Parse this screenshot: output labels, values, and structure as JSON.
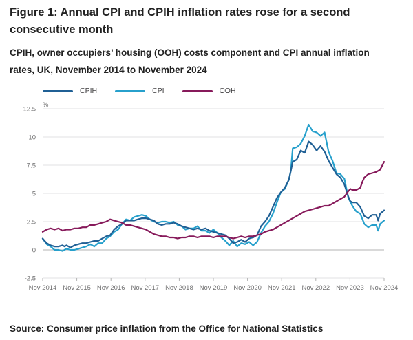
{
  "title": "Figure 1: Annual CPI and CPIH inflation rates rose for a second consecutive month",
  "subtitle": "CPIH, owner occupiers’ housing (OOH) costs component and CPI annual inflation rates, UK, November 2014 to November 2024",
  "source": "Source: Consumer price inflation from the Office for National Statistics",
  "chart_data": {
    "type": "line",
    "ylabel": "%",
    "xlabel": "",
    "ylim": [
      -2.5,
      12.5
    ],
    "yticks": [
      -2.5,
      0,
      2.5,
      5,
      7.5,
      10,
      12.5
    ],
    "ytick_labels": [
      "-2.5",
      "0",
      "2.5",
      "5",
      "7.5",
      "10",
      "12.5"
    ],
    "xticks": [
      "Nov 2014",
      "Nov 2015",
      "Nov 2016",
      "Nov 2017",
      "Nov 2018",
      "Nov 2019",
      "Nov 2020",
      "Nov 2021",
      "Nov 2022",
      "Nov 2023",
      "Nov 2024"
    ],
    "xmonths": 120,
    "legend_position": "top-left",
    "grid": true,
    "series": [
      {
        "name": "CPIH",
        "color": "#206095",
        "points": [
          [
            0,
            1.0
          ],
          [
            2,
            0.6
          ],
          [
            4,
            0.4
          ],
          [
            6,
            0.3
          ],
          [
            8,
            0.3
          ],
          [
            10,
            0.4
          ],
          [
            11,
            0.3
          ],
          [
            12,
            0.4
          ],
          [
            14,
            0.2
          ],
          [
            16,
            0.4
          ],
          [
            18,
            0.5
          ],
          [
            20,
            0.6
          ],
          [
            22,
            0.6
          ],
          [
            24,
            0.7
          ],
          [
            26,
            0.8
          ],
          [
            28,
            0.8
          ],
          [
            30,
            1.0
          ],
          [
            32,
            1.2
          ],
          [
            34,
            1.3
          ],
          [
            36,
            1.8
          ],
          [
            38,
            2.1
          ],
          [
            40,
            2.3
          ],
          [
            42,
            2.6
          ],
          [
            44,
            2.6
          ],
          [
            46,
            2.6
          ],
          [
            48,
            2.7
          ],
          [
            50,
            2.8
          ],
          [
            52,
            2.8
          ],
          [
            54,
            2.7
          ],
          [
            56,
            2.6
          ],
          [
            58,
            2.3
          ],
          [
            60,
            2.2
          ],
          [
            62,
            2.3
          ],
          [
            64,
            2.3
          ],
          [
            66,
            2.4
          ],
          [
            68,
            2.3
          ],
          [
            70,
            2.1
          ],
          [
            72,
            2.0
          ],
          [
            74,
            1.9
          ],
          [
            76,
            1.8
          ],
          [
            78,
            1.9
          ],
          [
            80,
            1.8
          ],
          [
            82,
            1.9
          ],
          [
            84,
            1.7
          ],
          [
            86,
            1.6
          ],
          [
            88,
            1.5
          ],
          [
            90,
            1.4
          ],
          [
            92,
            1.3
          ],
          [
            94,
            1.0
          ],
          [
            96,
            0.6
          ],
          [
            98,
            0.7
          ],
          [
            100,
            0.9
          ],
          [
            102,
            0.7
          ],
          [
            104,
            1.0
          ],
          [
            106,
            1.1
          ],
          [
            108,
            1.3
          ],
          [
            110,
            2.1
          ],
          [
            112,
            2.5
          ],
          [
            114,
            3.0
          ],
          [
            116,
            3.8
          ],
          [
            118,
            4.6
          ],
          [
            120,
            5.1
          ],
          [
            122,
            5.5
          ],
          [
            124,
            6.2
          ],
          [
            125,
            7.0
          ],
          [
            126,
            7.8
          ],
          [
            127,
            7.9
          ],
          [
            128,
            8.0
          ],
          [
            130,
            8.8
          ],
          [
            132,
            8.6
          ],
          [
            134,
            9.6
          ],
          [
            136,
            9.3
          ],
          [
            138,
            8.8
          ],
          [
            140,
            9.2
          ],
          [
            142,
            8.7
          ],
          [
            144,
            7.9
          ],
          [
            146,
            7.3
          ],
          [
            148,
            6.7
          ],
          [
            150,
            6.4
          ],
          [
            152,
            5.8
          ],
          [
            154,
            4.7
          ],
          [
            155,
            4.3
          ],
          [
            156,
            4.2
          ],
          [
            158,
            4.2
          ],
          [
            160,
            3.8
          ],
          [
            162,
            3.0
          ],
          [
            164,
            2.8
          ],
          [
            166,
            3.1
          ],
          [
            168,
            3.1
          ],
          [
            169,
            2.6
          ],
          [
            170,
            3.2
          ],
          [
            172,
            3.5
          ]
        ]
      },
      {
        "name": "CPI",
        "color": "#27a0cc",
        "points": [
          [
            0,
            1.0
          ],
          [
            2,
            0.5
          ],
          [
            4,
            0.3
          ],
          [
            6,
            0.0
          ],
          [
            8,
            0.0
          ],
          [
            10,
            -0.1
          ],
          [
            12,
            0.1
          ],
          [
            14,
            0.0
          ],
          [
            16,
            0.0
          ],
          [
            18,
            0.1
          ],
          [
            20,
            0.2
          ],
          [
            22,
            0.3
          ],
          [
            24,
            0.5
          ],
          [
            26,
            0.3
          ],
          [
            28,
            0.6
          ],
          [
            30,
            0.6
          ],
          [
            32,
            1.0
          ],
          [
            34,
            1.2
          ],
          [
            36,
            1.6
          ],
          [
            38,
            1.8
          ],
          [
            40,
            2.3
          ],
          [
            42,
            2.7
          ],
          [
            44,
            2.6
          ],
          [
            46,
            2.9
          ],
          [
            48,
            3.0
          ],
          [
            50,
            3.1
          ],
          [
            52,
            3.0
          ],
          [
            54,
            2.7
          ],
          [
            56,
            2.5
          ],
          [
            58,
            2.4
          ],
          [
            60,
            2.5
          ],
          [
            62,
            2.5
          ],
          [
            64,
            2.4
          ],
          [
            66,
            2.5
          ],
          [
            68,
            2.2
          ],
          [
            70,
            2.1
          ],
          [
            72,
            1.8
          ],
          [
            74,
            1.9
          ],
          [
            76,
            1.9
          ],
          [
            78,
            2.1
          ],
          [
            80,
            1.7
          ],
          [
            82,
            1.7
          ],
          [
            84,
            1.5
          ],
          [
            86,
            1.8
          ],
          [
            88,
            1.5
          ],
          [
            90,
            1.1
          ],
          [
            92,
            0.8
          ],
          [
            94,
            0.4
          ],
          [
            96,
            0.8
          ],
          [
            98,
            0.3
          ],
          [
            100,
            0.6
          ],
          [
            102,
            0.5
          ],
          [
            104,
            0.7
          ],
          [
            106,
            0.4
          ],
          [
            108,
            0.7
          ],
          [
            110,
            1.5
          ],
          [
            112,
            2.1
          ],
          [
            114,
            2.5
          ],
          [
            116,
            3.2
          ],
          [
            118,
            4.2
          ],
          [
            120,
            5.1
          ],
          [
            122,
            5.4
          ],
          [
            124,
            6.2
          ],
          [
            125,
            7.0
          ],
          [
            126,
            9.0
          ],
          [
            128,
            9.1
          ],
          [
            130,
            9.4
          ],
          [
            132,
            10.1
          ],
          [
            134,
            11.1
          ],
          [
            136,
            10.5
          ],
          [
            138,
            10.4
          ],
          [
            140,
            10.1
          ],
          [
            142,
            10.4
          ],
          [
            144,
            8.7
          ],
          [
            146,
            7.9
          ],
          [
            148,
            6.8
          ],
          [
            150,
            6.7
          ],
          [
            152,
            6.3
          ],
          [
            154,
            4.6
          ],
          [
            156,
            3.9
          ],
          [
            158,
            3.4
          ],
          [
            160,
            3.2
          ],
          [
            162,
            2.3
          ],
          [
            164,
            2.0
          ],
          [
            166,
            2.2
          ],
          [
            168,
            2.2
          ],
          [
            169,
            1.7
          ],
          [
            170,
            2.3
          ],
          [
            172,
            2.6
          ]
        ]
      },
      {
        "name": "OOH",
        "color": "#871a5b",
        "points": [
          [
            0,
            1.6
          ],
          [
            2,
            1.8
          ],
          [
            4,
            1.9
          ],
          [
            6,
            1.8
          ],
          [
            8,
            1.9
          ],
          [
            10,
            1.7
          ],
          [
            12,
            1.8
          ],
          [
            14,
            1.8
          ],
          [
            16,
            1.9
          ],
          [
            18,
            1.9
          ],
          [
            20,
            2.0
          ],
          [
            22,
            2.0
          ],
          [
            24,
            2.2
          ],
          [
            26,
            2.2
          ],
          [
            28,
            2.3
          ],
          [
            30,
            2.4
          ],
          [
            32,
            2.5
          ],
          [
            34,
            2.7
          ],
          [
            36,
            2.6
          ],
          [
            38,
            2.5
          ],
          [
            40,
            2.4
          ],
          [
            42,
            2.2
          ],
          [
            44,
            2.2
          ],
          [
            46,
            2.1
          ],
          [
            48,
            2.0
          ],
          [
            50,
            1.9
          ],
          [
            52,
            1.8
          ],
          [
            54,
            1.6
          ],
          [
            56,
            1.4
          ],
          [
            58,
            1.3
          ],
          [
            60,
            1.2
          ],
          [
            62,
            1.2
          ],
          [
            64,
            1.1
          ],
          [
            66,
            1.1
          ],
          [
            68,
            1.0
          ],
          [
            70,
            1.1
          ],
          [
            72,
            1.1
          ],
          [
            74,
            1.2
          ],
          [
            76,
            1.2
          ],
          [
            78,
            1.1
          ],
          [
            80,
            1.2
          ],
          [
            82,
            1.2
          ],
          [
            84,
            1.2
          ],
          [
            86,
            1.1
          ],
          [
            88,
            1.2
          ],
          [
            90,
            1.2
          ],
          [
            92,
            1.2
          ],
          [
            94,
            1.1
          ],
          [
            96,
            1.0
          ],
          [
            98,
            1.1
          ],
          [
            100,
            1.2
          ],
          [
            102,
            1.1
          ],
          [
            104,
            1.2
          ],
          [
            106,
            1.2
          ],
          [
            108,
            1.3
          ],
          [
            110,
            1.4
          ],
          [
            112,
            1.6
          ],
          [
            114,
            1.7
          ],
          [
            116,
            1.8
          ],
          [
            118,
            2.0
          ],
          [
            120,
            2.2
          ],
          [
            122,
            2.4
          ],
          [
            124,
            2.6
          ],
          [
            126,
            2.8
          ],
          [
            128,
            3.0
          ],
          [
            130,
            3.2
          ],
          [
            132,
            3.4
          ],
          [
            134,
            3.5
          ],
          [
            136,
            3.6
          ],
          [
            138,
            3.7
          ],
          [
            140,
            3.8
          ],
          [
            142,
            3.9
          ],
          [
            144,
            3.9
          ],
          [
            146,
            4.1
          ],
          [
            148,
            4.3
          ],
          [
            150,
            4.5
          ],
          [
            152,
            4.7
          ],
          [
            154,
            5.2
          ],
          [
            155,
            5.4
          ],
          [
            156,
            5.3
          ],
          [
            158,
            5.3
          ],
          [
            160,
            5.5
          ],
          [
            161,
            6.0
          ],
          [
            162,
            6.4
          ],
          [
            164,
            6.7
          ],
          [
            166,
            6.8
          ],
          [
            168,
            6.9
          ],
          [
            170,
            7.1
          ],
          [
            172,
            7.8
          ]
        ]
      }
    ]
  }
}
